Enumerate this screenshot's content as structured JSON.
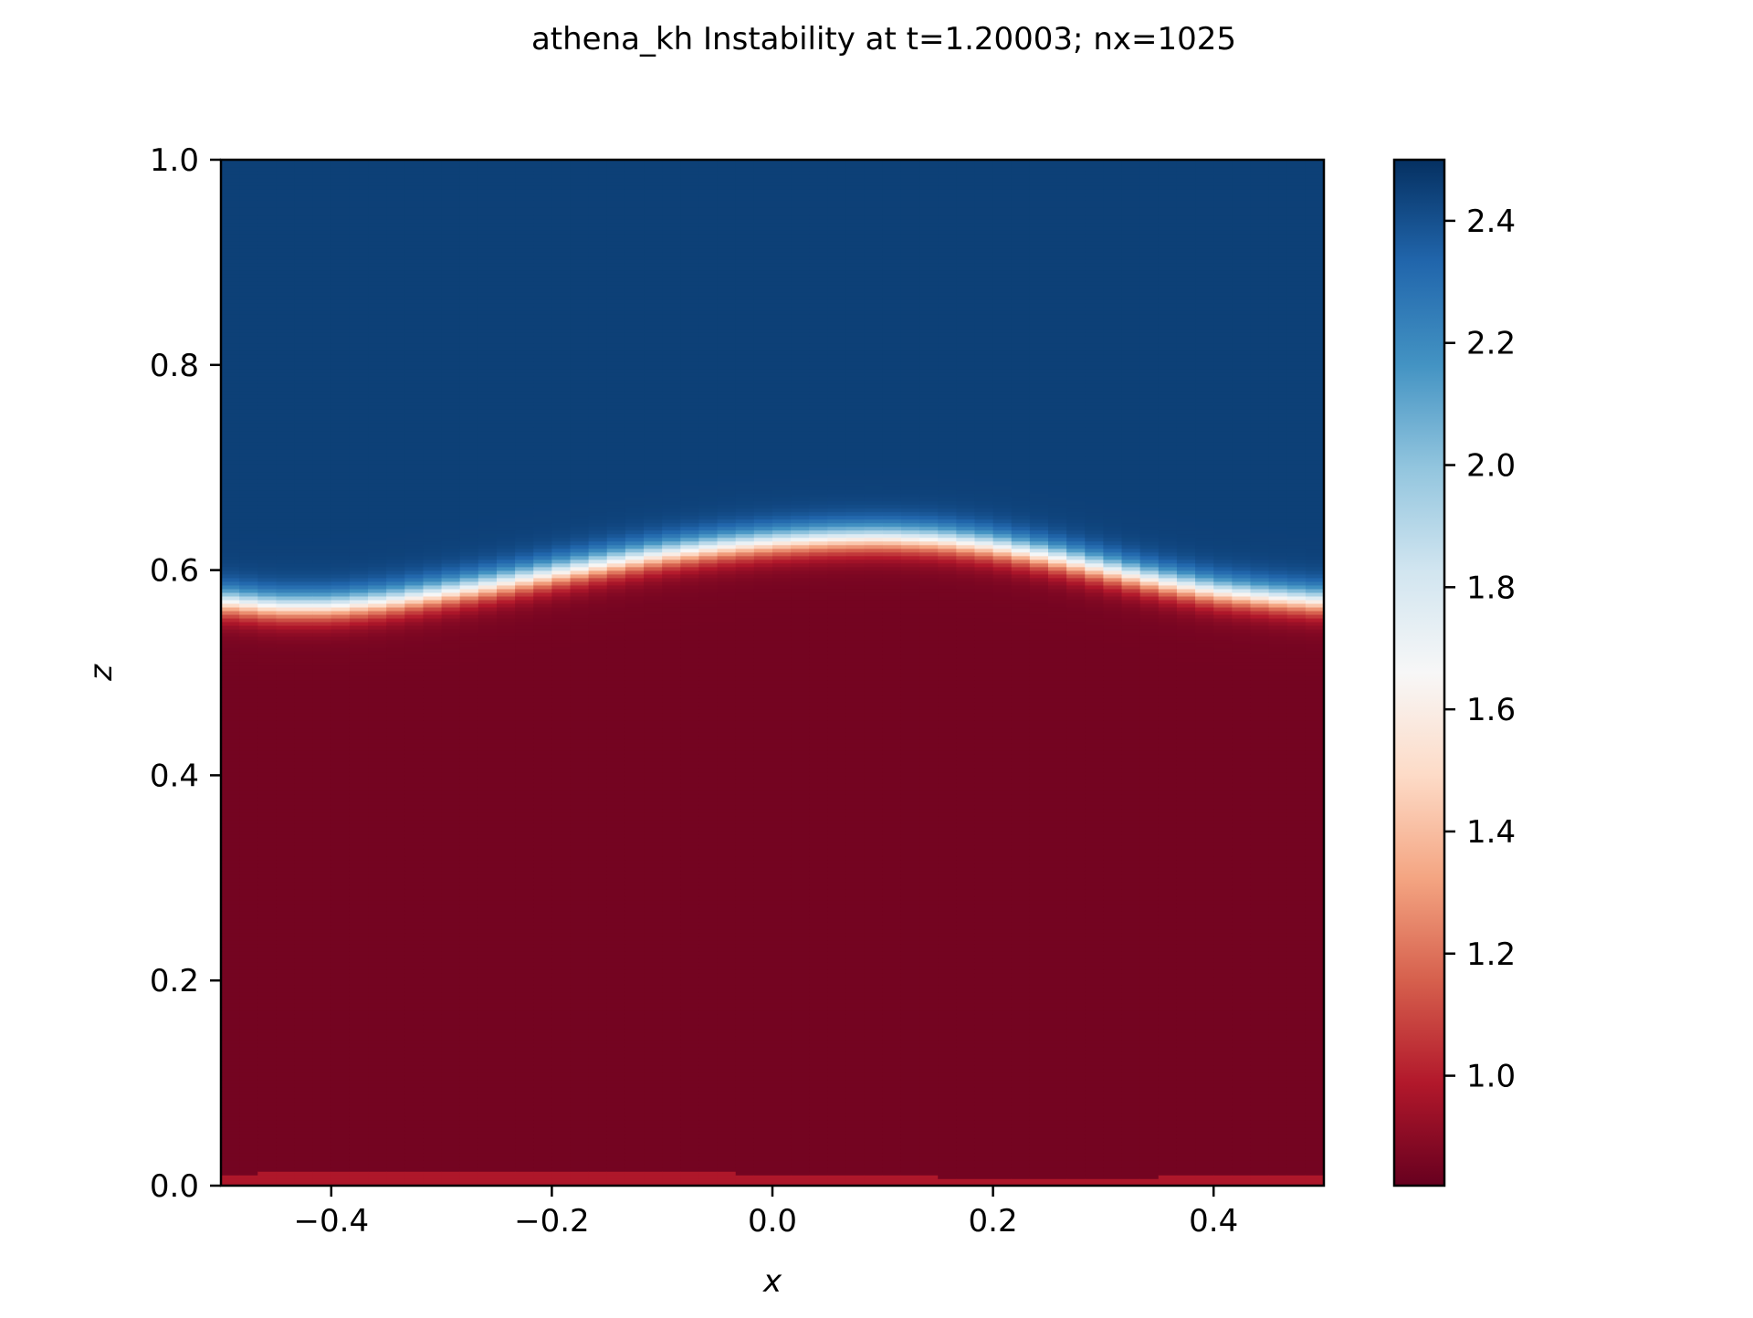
{
  "chart_data": {
    "type": "heatmap",
    "title": "athena_kh Instability at t=1.20003; nx=1025",
    "xlabel": "x",
    "ylabel": "z",
    "xlim": [
      -0.5,
      0.5
    ],
    "ylim": [
      0.0,
      1.0
    ],
    "x_ticks": [
      -0.4,
      -0.2,
      0.0,
      0.2,
      0.4
    ],
    "x_tick_labels": [
      "−0.4",
      "−0.2",
      "0.0",
      "0.2",
      "0.4"
    ],
    "y_ticks": [
      0.0,
      0.2,
      0.4,
      0.6,
      0.8,
      1.0
    ],
    "y_tick_labels": [
      "0.0",
      "0.2",
      "0.4",
      "0.6",
      "0.8",
      "1.0"
    ],
    "colormap": "RdBu",
    "colorbar": {
      "range": [
        0.82,
        2.5
      ],
      "ticks": [
        1.0,
        1.2,
        1.4,
        1.6,
        1.8,
        2.0,
        2.2,
        2.4
      ],
      "tick_labels": [
        "1.0",
        "1.2",
        "1.4",
        "1.6",
        "1.8",
        "2.0",
        "2.2",
        "2.4"
      ],
      "colors": [
        "#67001f",
        "#b2182b",
        "#d6604d",
        "#f4a582",
        "#fddbc7",
        "#f7f7f7",
        "#d1e5f0",
        "#92c5de",
        "#4393c3",
        "#2166ac",
        "#053061"
      ]
    },
    "field": {
      "low_value": 0.85,
      "high_value": 2.45,
      "interface_profile": {
        "x": [
          -0.5,
          -0.45,
          -0.4,
          -0.35,
          -0.3,
          -0.25,
          -0.2,
          -0.15,
          -0.1,
          -0.05,
          0.0,
          0.05,
          0.1,
          0.15,
          0.2,
          0.25,
          0.3,
          0.35,
          0.4,
          0.45,
          0.5
        ],
        "z": [
          0.57,
          0.565,
          0.565,
          0.57,
          0.578,
          0.587,
          0.597,
          0.607,
          0.616,
          0.623,
          0.628,
          0.631,
          0.632,
          0.63,
          0.624,
          0.614,
          0.602,
          0.59,
          0.58,
          0.574,
          0.57
        ]
      },
      "interface_width": 0.03,
      "bottom_strip": {
        "z_top": [
          0.012,
          0.013,
          0.014,
          0.015,
          0.016,
          0.016,
          0.016,
          0.015,
          0.014,
          0.013,
          0.012,
          0.011,
          0.01,
          0.009,
          0.008,
          0.008,
          0.008,
          0.009,
          0.01,
          0.011,
          0.012
        ],
        "value": 0.98
      }
    }
  }
}
